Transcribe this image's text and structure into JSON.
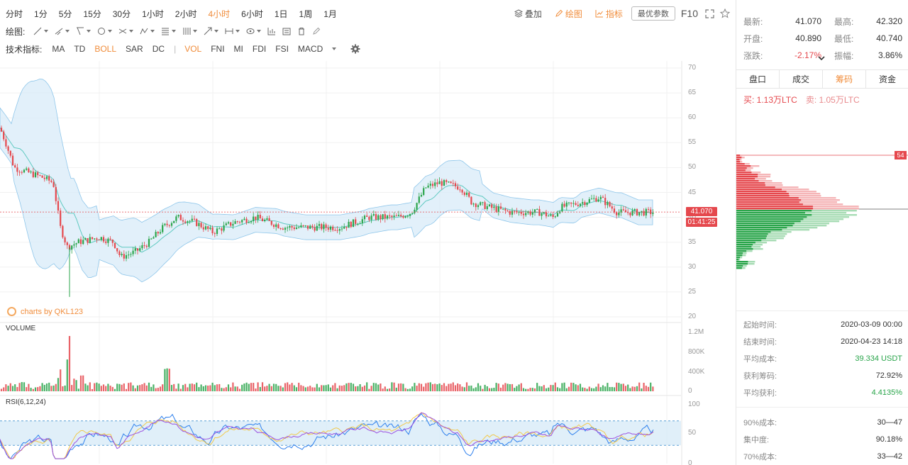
{
  "intervals": [
    {
      "label": "分时",
      "active": false
    },
    {
      "label": "1分",
      "active": false
    },
    {
      "label": "5分",
      "active": false
    },
    {
      "label": "15分",
      "active": false
    },
    {
      "label": "30分",
      "active": false
    },
    {
      "label": "1小时",
      "active": false
    },
    {
      "label": "2小时",
      "active": false
    },
    {
      "label": "4小时",
      "active": true
    },
    {
      "label": "6小时",
      "active": false
    },
    {
      "label": "1日",
      "active": false
    },
    {
      "label": "1周",
      "active": false
    },
    {
      "label": "1月",
      "active": false
    }
  ],
  "toolbar_right": {
    "overlay": "叠加",
    "draw": "绘图",
    "indicator": "指标",
    "optimal_params": "最优参数",
    "f10": "F10"
  },
  "draw_label": "绘图:",
  "indicator_label": "技术指标:",
  "indicators": [
    {
      "label": "MA",
      "active": false
    },
    {
      "label": "TD",
      "active": false
    },
    {
      "label": "BOLL",
      "active": true
    },
    {
      "label": "SAR",
      "active": false
    },
    {
      "label": "DC",
      "active": false
    },
    {
      "label": "VOL",
      "active": true
    },
    {
      "label": "FNI",
      "active": false
    },
    {
      "label": "MI",
      "active": false
    },
    {
      "label": "FDI",
      "active": false
    },
    {
      "label": "FSI",
      "active": false
    },
    {
      "label": "MACD",
      "active": false
    }
  ],
  "watermark": "charts by QKL123",
  "volume_label": "VOLUME",
  "rsi_label": "RSI(6,12,24)",
  "price_tag": "41.070",
  "time_tag": "01:41:25",
  "colors": {
    "up": "#2aa54b",
    "down": "#e5484d",
    "accent": "#f08c3a",
    "band": "#d8ebf8"
  },
  "stats": {
    "latest_k": "最新:",
    "latest_v": "41.070",
    "high_k": "最高:",
    "high_v": "42.320",
    "open_k": "开盘:",
    "open_v": "40.890",
    "low_k": "最低:",
    "low_v": "40.740",
    "change_k": "涨跌:",
    "change_v": "-2.17%",
    "amp_k": "振幅:",
    "amp_v": "3.86%"
  },
  "tabs": [
    {
      "label": "盘口",
      "active": false
    },
    {
      "label": "成交",
      "active": false
    },
    {
      "label": "筹码",
      "active": true
    },
    {
      "label": "资金",
      "active": false
    }
  ],
  "buy": "买: 1.13万LTC",
  "sell": "卖: 1.05万LTC",
  "chip_tag": "54",
  "info1": [
    {
      "k": "起始时间:",
      "v": "2020-03-09 00:00",
      "green": false
    },
    {
      "k": "结束时间:",
      "v": "2020-04-23 14:18",
      "green": false
    },
    {
      "k": "平均成本:",
      "v": "39.334 USDT",
      "green": true
    },
    {
      "k": "获利筹码:",
      "v": "72.92%",
      "green": false
    },
    {
      "k": "平均获利:",
      "v": "4.4135%",
      "green": true
    }
  ],
  "info2": [
    {
      "k": "90%成本:",
      "v": "30—47",
      "green": false
    },
    {
      "k": "集中度:",
      "v": "90.18%",
      "green": false
    },
    {
      "k": "70%成本:",
      "v": "33—42",
      "green": false
    }
  ],
  "chart_data": {
    "type": "candlestick",
    "price_axis": {
      "ticks": [
        70,
        65,
        60,
        55,
        50,
        45,
        40,
        35,
        30,
        25,
        20
      ],
      "ylim": [
        20,
        70
      ]
    },
    "volume_axis": {
      "ticks": [
        "1.2M",
        "800K",
        "400K",
        "0"
      ]
    },
    "rsi_axis": {
      "ticks": [
        100,
        50,
        0
      ]
    },
    "last_price": 41.07
  }
}
